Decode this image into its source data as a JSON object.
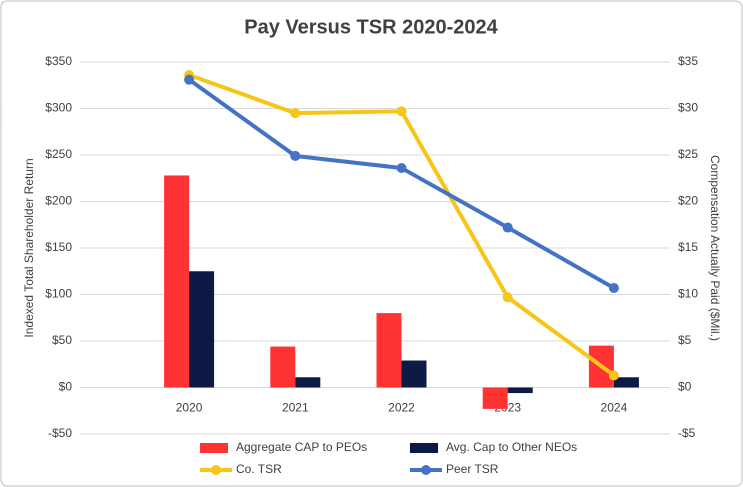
{
  "chart_data": {
    "type": "bar_line",
    "title": "Pay Versus TSR 2020-2024",
    "y_label": "Indexed Total Shareholder Return",
    "y2_label": "Compensation Actually Paid ($Mil.)",
    "categories": [
      "2020",
      "2021",
      "2022",
      "2023",
      "2024"
    ],
    "series": [
      {
        "name": "Aggregate CAP to PEOs",
        "type": "bar",
        "axis": "y2",
        "color": "#ff3333",
        "values": [
          22.8,
          4.4,
          8.0,
          -2.3,
          4.5
        ]
      },
      {
        "name": "Avg. Cap to Other NEOs",
        "type": "bar",
        "axis": "y2",
        "color": "#0d1a45",
        "values": [
          12.5,
          1.1,
          2.9,
          -0.6,
          1.1
        ]
      },
      {
        "name": "Co. TSR",
        "type": "line",
        "axis": "y",
        "color": "#f5c518",
        "values": [
          336,
          295,
          297,
          97,
          13
        ]
      },
      {
        "name": "Peer TSR",
        "type": "line",
        "axis": "y",
        "color": "#4472c4",
        "values": [
          331,
          249,
          236,
          172,
          107
        ]
      }
    ],
    "ylim": [
      -50,
      350
    ],
    "yticks": [
      {
        "value": -50,
        "label": "-$50"
      },
      {
        "value": 0,
        "label": "$0"
      },
      {
        "value": 50,
        "label": "$50"
      },
      {
        "value": 100,
        "label": "$100"
      },
      {
        "value": 150,
        "label": "$150"
      },
      {
        "value": 200,
        "label": "$200"
      },
      {
        "value": 250,
        "label": "$250"
      },
      {
        "value": 300,
        "label": "$300"
      },
      {
        "value": 350,
        "label": "$350"
      }
    ],
    "y2lim": [
      -5,
      35
    ],
    "y2ticks": [
      {
        "value": -5,
        "label": "-$5"
      },
      {
        "value": 0,
        "label": "$0"
      },
      {
        "value": 5,
        "label": "$5"
      },
      {
        "value": 10,
        "label": "$10"
      },
      {
        "value": 15,
        "label": "$15"
      },
      {
        "value": 20,
        "label": "$20"
      },
      {
        "value": 25,
        "label": "$25"
      },
      {
        "value": 30,
        "label": "$30"
      },
      {
        "value": 35,
        "label": "$35"
      }
    ],
    "grid": true
  }
}
